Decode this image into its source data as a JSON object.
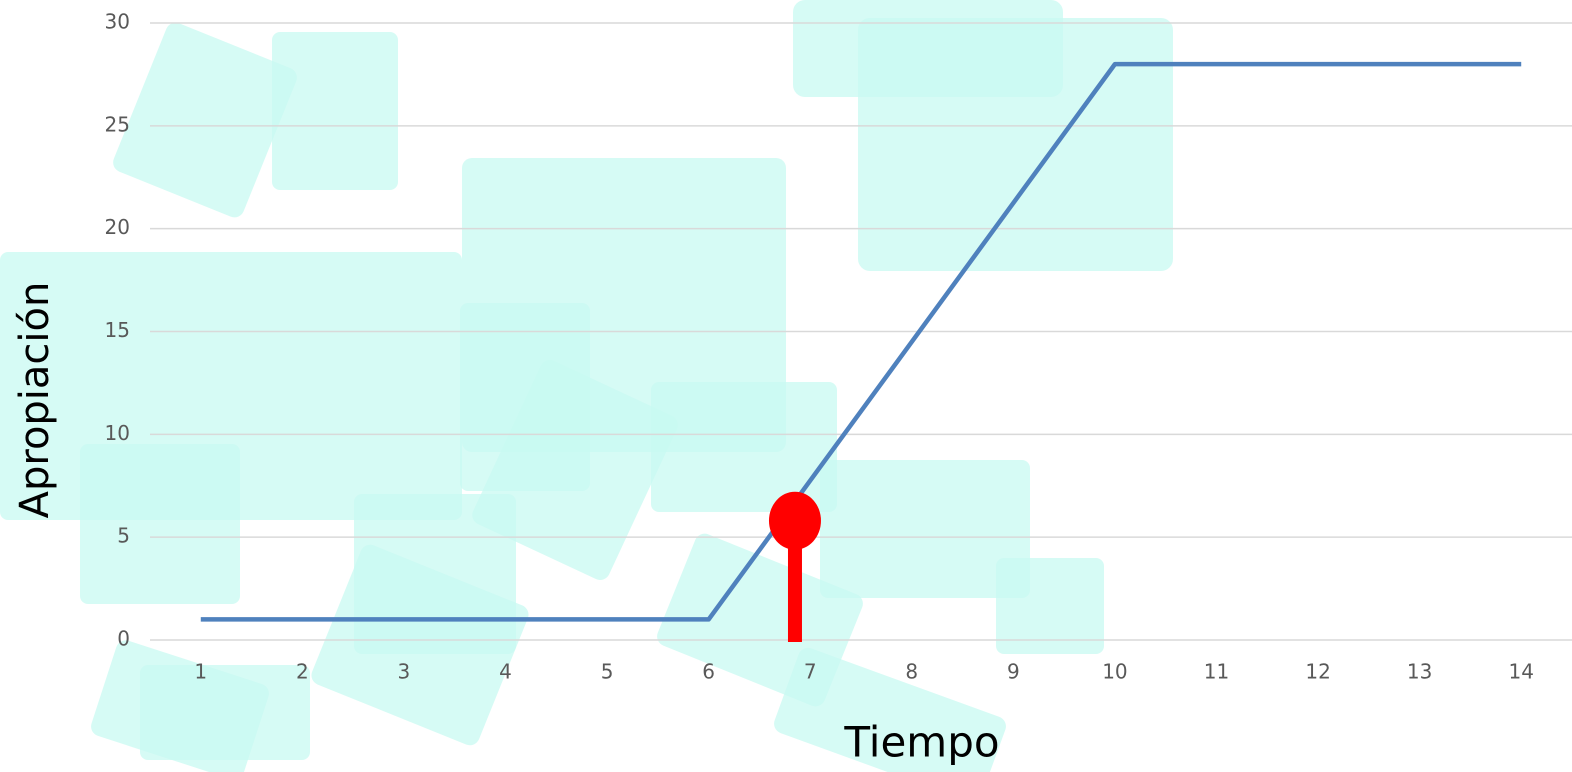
{
  "chart_data": {
    "type": "line",
    "y_label": "Apropiación",
    "x_label": "Tiempo",
    "categories": [
      1,
      2,
      3,
      4,
      5,
      6,
      7,
      8,
      9,
      10,
      11,
      12,
      13,
      14
    ],
    "series": [
      {
        "color": "#4f81bd",
        "values": [
          1,
          1,
          1,
          1,
          1,
          1,
          7.75,
          14.5,
          21.25,
          28,
          28,
          28,
          28,
          28
        ]
      }
    ],
    "ylim": [
      0,
      30
    ],
    "yticks": [
      0,
      5,
      10,
      15,
      20,
      25,
      30
    ],
    "grid": true,
    "marker": {
      "x": 6.85,
      "y": 5.8,
      "color": "#ff0000"
    }
  }
}
